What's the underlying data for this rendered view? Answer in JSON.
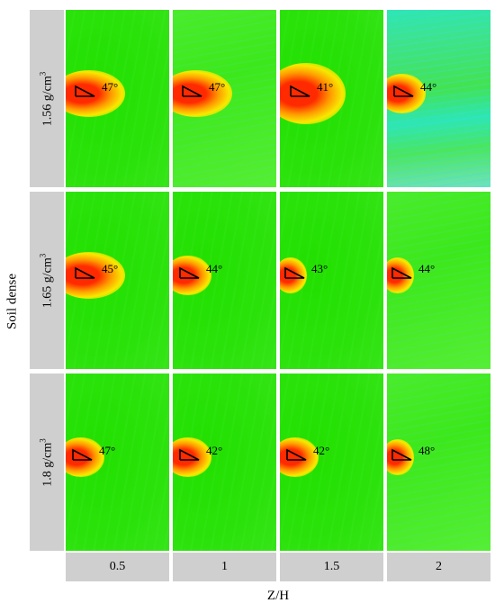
{
  "axes": {
    "y_title": "Soil dense",
    "x_title": "Z/H"
  },
  "rows": [
    {
      "label_base": "1.56 g/cm",
      "label_sup": "3"
    },
    {
      "label_base": "1.65 g/cm",
      "label_sup": "3"
    },
    {
      "label_base": "1.8 g/cm",
      "label_sup": "3"
    }
  ],
  "columns": [
    "0.5",
    "1",
    "1.5",
    "2"
  ],
  "panels": [
    [
      {
        "angle": "47°",
        "hot_size": "large",
        "background": "green"
      },
      {
        "angle": "47°",
        "hot_size": "large",
        "background": "light-green"
      },
      {
        "angle": "41°",
        "hot_size": "xlarge",
        "background": "green"
      },
      {
        "angle": "44°",
        "hot_size": "medium",
        "background": "cyan-mixed"
      }
    ],
    [
      {
        "angle": "45°",
        "hot_size": "large",
        "background": "green"
      },
      {
        "angle": "44°",
        "hot_size": "medium",
        "background": "green"
      },
      {
        "angle": "43°",
        "hot_size": "small",
        "background": "green"
      },
      {
        "angle": "44°",
        "hot_size": "small",
        "background": "light-green"
      }
    ],
    [
      {
        "angle": "47°",
        "hot_size": "medium",
        "background": "green"
      },
      {
        "angle": "42°",
        "hot_size": "medium",
        "background": "green"
      },
      {
        "angle": "42°",
        "hot_size": "medium",
        "background": "green"
      },
      {
        "angle": "48°",
        "hot_size": "small",
        "background": "light-green"
      }
    ]
  ],
  "colors": {
    "green": "#22e000",
    "light_green": "#55ee33",
    "cyan": "#2de6b4",
    "red": "#ff2a00",
    "orange": "#ff9a00",
    "yellow": "#f8e800",
    "band_gray": "#cfcfcf"
  }
}
